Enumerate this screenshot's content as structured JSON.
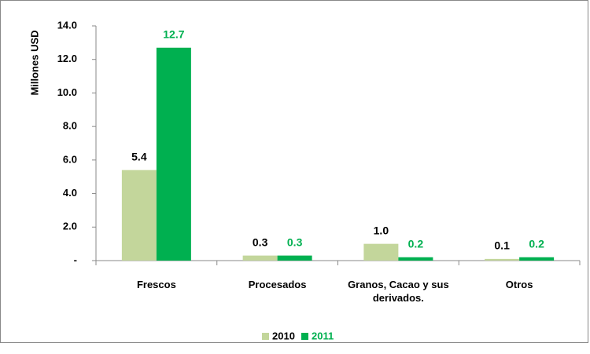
{
  "chart_data": {
    "type": "bar",
    "y_label": "Millones USD",
    "categories": [
      "Frescos",
      "Procesados",
      "Granos, Cacao y sus derivados.",
      "Otros"
    ],
    "series": [
      {
        "name": "2010",
        "color": "#c3d69b",
        "label_color": "#000000",
        "values": [
          5.4,
          0.3,
          1.0,
          0.1
        ],
        "value_labels": [
          "5.4",
          "0.3",
          "1.0",
          "0.1"
        ]
      },
      {
        "name": "2011",
        "color": "#00b050",
        "label_color": "#00b050",
        "values": [
          12.7,
          0.3,
          0.2,
          0.2
        ],
        "value_labels": [
          "12.7",
          "0.3",
          "0.2",
          "0.2"
        ]
      }
    ],
    "ylim": [
      0,
      14
    ],
    "yticks": [
      {
        "value": 0,
        "label": "-"
      },
      {
        "value": 2,
        "label": "2.0"
      },
      {
        "value": 4,
        "label": "4.0"
      },
      {
        "value": 6,
        "label": "6.0"
      },
      {
        "value": 8,
        "label": "8.0"
      },
      {
        "value": 10,
        "label": "10.0"
      },
      {
        "value": 12,
        "label": "12.0"
      },
      {
        "value": 14,
        "label": "14.0"
      }
    ],
    "legend": "bottom"
  }
}
